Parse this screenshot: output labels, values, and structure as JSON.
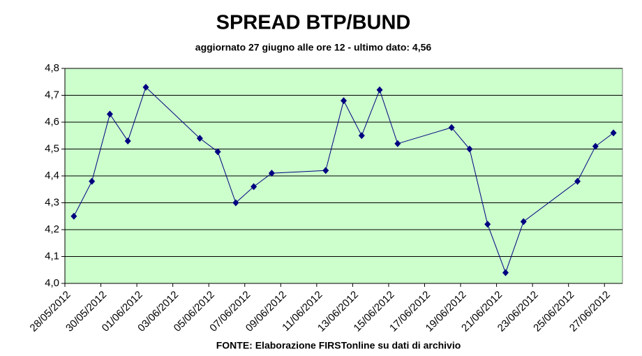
{
  "chart_data": {
    "type": "line",
    "title": "SPREAD BTP/BUND",
    "subtitle": "aggiornato 27 giugno alle ore 12 - ultimo dato: 4,56",
    "source": "FONTE: Elaborazione FIRSTonline su dati di archivio",
    "x": [
      "28/05/2012",
      "29/05/2012",
      "30/05/2012",
      "31/05/2012",
      "01/06/2012",
      "04/06/2012",
      "05/06/2012",
      "06/06/2012",
      "07/06/2012",
      "08/06/2012",
      "11/06/2012",
      "12/06/2012",
      "13/06/2012",
      "14/06/2012",
      "15/06/2012",
      "18/06/2012",
      "19/06/2012",
      "20/06/2012",
      "21/06/2012",
      "22/06/2012",
      "25/06/2012",
      "26/06/2012",
      "27/06/2012"
    ],
    "series": [
      {
        "color": "#000080",
        "values": [
          4.25,
          4.38,
          4.63,
          4.53,
          4.73,
          4.54,
          4.49,
          4.3,
          4.36,
          4.41,
          4.42,
          4.68,
          4.55,
          4.72,
          4.52,
          4.58,
          4.5,
          4.22,
          4.04,
          4.23,
          4.38,
          4.51,
          4.56
        ]
      }
    ],
    "xlim": [
      "28/05/2012",
      "28/06/2012"
    ],
    "xticks": [
      "28/05/2012",
      "30/05/2012",
      "01/06/2012",
      "03/06/2012",
      "05/06/2012",
      "07/06/2012",
      "09/06/2012",
      "11/06/2012",
      "13/06/2012",
      "15/06/2012",
      "17/06/2012",
      "19/06/2012",
      "21/06/2012",
      "23/06/2012",
      "25/06/2012",
      "27/06/2012"
    ],
    "ylim": [
      4.0,
      4.8
    ],
    "yticks": [
      {
        "value": 4.0,
        "label": "4,0"
      },
      {
        "value": 4.1,
        "label": "4,1"
      },
      {
        "value": 4.2,
        "label": "4,2"
      },
      {
        "value": 4.3,
        "label": "4,3"
      },
      {
        "value": 4.4,
        "label": "4,4"
      },
      {
        "value": 4.5,
        "label": "4,5"
      },
      {
        "value": 4.6,
        "label": "4,6"
      },
      {
        "value": 4.7,
        "label": "4,7"
      },
      {
        "value": 4.8,
        "label": "4,8"
      }
    ],
    "grid": true,
    "background": "#ccffcc"
  }
}
